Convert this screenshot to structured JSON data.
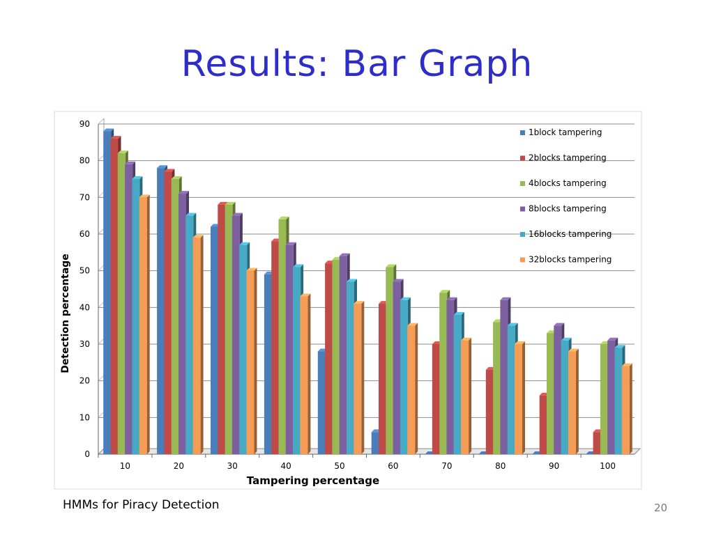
{
  "slide": {
    "title": "Results: Bar Graph",
    "footer_left": "HMMs for Piracy Detection",
    "page_number": "20"
  },
  "chart_data": {
    "type": "bar",
    "xlabel": "Tampering percentage",
    "ylabel": "Detection percentage",
    "ylim": [
      0,
      90
    ],
    "yticks": [
      0,
      10,
      20,
      30,
      40,
      50,
      60,
      70,
      80,
      90
    ],
    "grid": true,
    "legend_position": "top-right",
    "categories": [
      "10",
      "20",
      "30",
      "40",
      "50",
      "60",
      "70",
      "80",
      "90",
      "100"
    ],
    "series": [
      {
        "name": "1block tampering",
        "color": "#4a7ebb",
        "values": [
          88,
          78,
          62,
          49,
          28,
          6,
          0,
          0,
          0,
          0
        ]
      },
      {
        "name": "2blocks tampering",
        "color": "#be4b48",
        "values": [
          86,
          77,
          68,
          58,
          52,
          41,
          30,
          23,
          16,
          6
        ]
      },
      {
        "name": "4blocks tampering",
        "color": "#98b954",
        "values": [
          82,
          75,
          68,
          64,
          53,
          51,
          44,
          36,
          33,
          30
        ]
      },
      {
        "name": "8blocks tampering",
        "color": "#7d60a0",
        "values": [
          79,
          71,
          65,
          57,
          54,
          47,
          42,
          42,
          35,
          31
        ]
      },
      {
        "name": "16blocks tampering",
        "color": "#46aac5",
        "values": [
          75,
          65,
          57,
          51,
          47,
          42,
          38,
          35,
          31,
          29
        ]
      },
      {
        "name": "32blocks tampering",
        "color": "#f59d56",
        "values": [
          70,
          59,
          50,
          43,
          41,
          35,
          31,
          30,
          28,
          24
        ]
      }
    ]
  }
}
